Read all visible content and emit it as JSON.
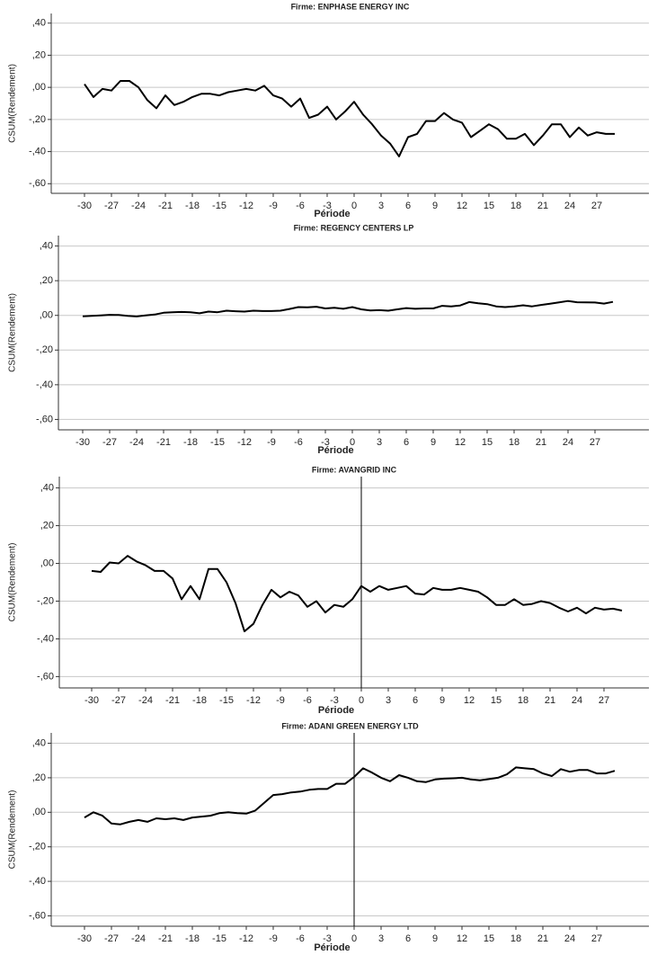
{
  "chart_data": [
    {
      "type": "line",
      "title": "Firme: ENPHASE ENERGY INC",
      "x_label": "Période",
      "y_label": "CSUM(Rendement)",
      "x": [
        -30,
        -29,
        -28,
        -27,
        -26,
        -25,
        -24,
        -23,
        -22,
        -21,
        -20,
        -19,
        -18,
        -17,
        -16,
        -15,
        -14,
        -13,
        -12,
        -11,
        -10,
        -9,
        -8,
        -7,
        -6,
        -5,
        -4,
        -3,
        -2,
        -1,
        0,
        1,
        2,
        3,
        4,
        5,
        6,
        7,
        8,
        9,
        10,
        11,
        12,
        13,
        14,
        15,
        16,
        17,
        18,
        19,
        20,
        21,
        22,
        23,
        24,
        25,
        26,
        27,
        28,
        29
      ],
      "series": [
        {
          "name": "CSUM(Rendement)",
          "color": "#000000",
          "values": [
            0.02,
            -0.06,
            -0.01,
            -0.02,
            0.04,
            0.04,
            0,
            -0.08,
            -0.13,
            -0.05,
            -0.11,
            -0.09,
            -0.06,
            -0.04,
            -0.04,
            -0.05,
            -0.03,
            -0.02,
            -0.01,
            -0.02,
            0.01,
            -0.05,
            -0.07,
            -0.12,
            -0.07,
            -0.19,
            -0.17,
            -0.12,
            -0.2,
            -0.15,
            -0.09,
            -0.17,
            -0.23,
            -0.3,
            -0.35,
            -0.43,
            -0.31,
            -0.29,
            -0.21,
            -0.21,
            -0.16,
            -0.2,
            -0.22,
            -0.31,
            -0.27,
            -0.23,
            -0.26,
            -0.32,
            -0.32,
            -0.29,
            -0.36,
            -0.3,
            -0.23,
            -0.23,
            -0.31,
            -0.25,
            -0.3,
            -0.28,
            -0.29,
            -0.29
          ]
        }
      ],
      "xlim": [
        -33.7,
        32.8
      ],
      "xticks": [
        -30,
        -27,
        -24,
        -21,
        -18,
        -15,
        -12,
        -9,
        -6,
        -3,
        0,
        3,
        6,
        9,
        12,
        15,
        18,
        21,
        24,
        27
      ],
      "ylim": [
        -0.66,
        0.46
      ],
      "yticks": [
        {
          "value": 0.4,
          "label": ",40"
        },
        {
          "value": 0.2,
          "label": ",20"
        },
        {
          "value": 0,
          "label": ",00"
        },
        {
          "value": -0.2,
          "label": "-,20"
        },
        {
          "value": -0.4,
          "label": "-,40"
        },
        {
          "value": -0.6,
          "label": "-,60"
        }
      ],
      "grid": true
    },
    {
      "type": "line",
      "title": "Firme: REGENCY CENTERS LP",
      "x_label": "Période",
      "y_label": "CSUM(Rendement)",
      "x": [
        -30,
        -29,
        -28,
        -27,
        -26,
        -25,
        -24,
        -23,
        -22,
        -21,
        -20,
        -19,
        -18,
        -17,
        -16,
        -15,
        -14,
        -13,
        -12,
        -11,
        -10,
        -9,
        -8,
        -7,
        -6,
        -5,
        -4,
        -3,
        -2,
        -1,
        0,
        1,
        2,
        3,
        4,
        5,
        6,
        7,
        8,
        9,
        10,
        11,
        12,
        13,
        14,
        15,
        16,
        17,
        18,
        19,
        20,
        21,
        22,
        23,
        24,
        25,
        26,
        27,
        28,
        29
      ],
      "series": [
        {
          "name": "CSUM(Rendement)",
          "color": "#000000",
          "values": [
            -0.005,
            -0.003,
            0,
            0.003,
            0.002,
            -0.003,
            -0.006,
            0,
            0.005,
            0.015,
            0.018,
            0.02,
            0.018,
            0.012,
            0.022,
            0.018,
            0.027,
            0.024,
            0.022,
            0.027,
            0.025,
            0.025,
            0.027,
            0.037,
            0.048,
            0.046,
            0.05,
            0.04,
            0.044,
            0.038,
            0.048,
            0.035,
            0.028,
            0.03,
            0.027,
            0.035,
            0.042,
            0.038,
            0.04,
            0.04,
            0.055,
            0.052,
            0.057,
            0.077,
            0.07,
            0.065,
            0.052,
            0.048,
            0.052,
            0.058,
            0.052,
            0.06,
            0.067,
            0.075,
            0.083,
            0.076,
            0.075,
            0.074,
            0.068,
            0.078
          ]
        }
      ],
      "xlim": [
        -32.7,
        33
      ],
      "xticks": [
        -30,
        -27,
        -24,
        -21,
        -18,
        -15,
        -12,
        -9,
        -6,
        -3,
        0,
        3,
        6,
        9,
        12,
        15,
        18,
        21,
        24,
        27
      ],
      "ylim": [
        -0.66,
        0.46
      ],
      "yticks": [
        {
          "value": 0.4,
          "label": ",40"
        },
        {
          "value": 0.2,
          "label": ",20"
        },
        {
          "value": 0,
          "label": ",00"
        },
        {
          "value": -0.2,
          "label": "-,20"
        },
        {
          "value": -0.4,
          "label": "-,40"
        },
        {
          "value": -0.6,
          "label": "-,60"
        }
      ],
      "grid": true
    },
    {
      "type": "line",
      "title": "Firme: AVANGRID INC",
      "x_label": "Période",
      "y_label": "CSUM(Rendement)",
      "x": [
        -30,
        -29,
        -28,
        -27,
        -26,
        -25,
        -24,
        -23,
        -22,
        -21,
        -20,
        -19,
        -18,
        -17,
        -16,
        -15,
        -14,
        -13,
        -12,
        -11,
        -10,
        -9,
        -8,
        -7,
        -6,
        -5,
        -4,
        -3,
        -2,
        -1,
        0,
        1,
        2,
        3,
        4,
        5,
        6,
        7,
        8,
        9,
        10,
        11,
        12,
        13,
        14,
        15,
        16,
        17,
        18,
        19,
        20,
        21,
        22,
        23,
        24,
        25,
        26,
        27,
        28,
        29
      ],
      "series": [
        {
          "name": "CSUM(Rendement)",
          "color": "#000000",
          "values": [
            -0.04,
            -0.045,
            0.005,
            0,
            0.04,
            0.01,
            -0.01,
            -0.04,
            -0.04,
            -0.08,
            -0.19,
            -0.12,
            -0.19,
            -0.03,
            -0.03,
            -0.1,
            -0.21,
            -0.36,
            -0.32,
            -0.22,
            -0.14,
            -0.18,
            -0.15,
            -0.17,
            -0.23,
            -0.2,
            -0.26,
            -0.22,
            -0.23,
            -0.19,
            -0.12,
            -0.15,
            -0.12,
            -0.14,
            -0.13,
            -0.12,
            -0.16,
            -0.165,
            -0.13,
            -0.14,
            -0.14,
            -0.13,
            -0.14,
            -0.15,
            -0.18,
            -0.22,
            -0.22,
            -0.19,
            -0.22,
            -0.215,
            -0.2,
            -0.21,
            -0.235,
            -0.255,
            -0.235,
            -0.265,
            -0.235,
            -0.245,
            -0.24,
            -0.25
          ]
        }
      ],
      "xlim": [
        -33.6,
        32
      ],
      "xticks": [
        -30,
        -27,
        -24,
        -21,
        -18,
        -15,
        -12,
        -9,
        -6,
        -3,
        0,
        3,
        6,
        9,
        12,
        15,
        18,
        21,
        24,
        27
      ],
      "ylim": [
        -0.66,
        0.46
      ],
      "yticks": [
        {
          "value": 0.4,
          "label": ",40"
        },
        {
          "value": 0.2,
          "label": ",20"
        },
        {
          "value": 0,
          "label": ",00"
        },
        {
          "value": -0.2,
          "label": "-,20"
        },
        {
          "value": -0.4,
          "label": "-,40"
        },
        {
          "value": -0.6,
          "label": "-,60"
        }
      ],
      "grid": true,
      "reference_line_x": 0
    },
    {
      "type": "line",
      "title": "Firme: ADANI GREEN ENERGY LTD",
      "x_label": "Période",
      "y_label": "CSUM(Rendement)",
      "x": [
        -30,
        -29,
        -28,
        -27,
        -26,
        -25,
        -24,
        -23,
        -22,
        -21,
        -20,
        -19,
        -18,
        -17,
        -16,
        -15,
        -14,
        -13,
        -12,
        -11,
        -10,
        -9,
        -8,
        -7,
        -6,
        -5,
        -4,
        -3,
        -2,
        -1,
        0,
        1,
        2,
        3,
        4,
        5,
        6,
        7,
        8,
        9,
        10,
        11,
        12,
        13,
        14,
        15,
        16,
        17,
        18,
        19,
        20,
        21,
        22,
        23,
        24,
        25,
        26,
        27,
        28,
        29
      ],
      "series": [
        {
          "name": "CSUM(Rendement)",
          "color": "#000000",
          "values": [
            -0.03,
            0,
            -0.02,
            -0.065,
            -0.07,
            -0.055,
            -0.045,
            -0.055,
            -0.035,
            -0.04,
            -0.035,
            -0.045,
            -0.03,
            -0.025,
            -0.02,
            -0.005,
            0,
            -0.005,
            -0.008,
            0.01,
            0.055,
            0.1,
            0.105,
            0.115,
            0.12,
            0.13,
            0.135,
            0.135,
            0.165,
            0.165,
            0.205,
            0.255,
            0.23,
            0.2,
            0.18,
            0.215,
            0.2,
            0.18,
            0.175,
            0.19,
            0.195,
            0.197,
            0.2,
            0.19,
            0.185,
            0.192,
            0.2,
            0.22,
            0.26,
            0.255,
            0.25,
            0.225,
            0.21,
            0.25,
            0.235,
            0.245,
            0.245,
            0.225,
            0.225,
            0.24
          ]
        }
      ],
      "xlim": [
        -33.7,
        32.8
      ],
      "xticks": [
        -30,
        -27,
        -24,
        -21,
        -18,
        -15,
        -12,
        -9,
        -6,
        -3,
        0,
        3,
        6,
        9,
        12,
        15,
        18,
        21,
        24,
        27
      ],
      "ylim": [
        -0.66,
        0.46
      ],
      "yticks": [
        {
          "value": 0.4,
          "label": ",40"
        },
        {
          "value": 0.2,
          "label": ",20"
        },
        {
          "value": 0,
          "label": ",00"
        },
        {
          "value": -0.2,
          "label": "-,20"
        },
        {
          "value": -0.4,
          "label": "-,40"
        },
        {
          "value": -0.6,
          "label": "-,60"
        }
      ],
      "grid": true,
      "reference_line_x": 0
    }
  ]
}
